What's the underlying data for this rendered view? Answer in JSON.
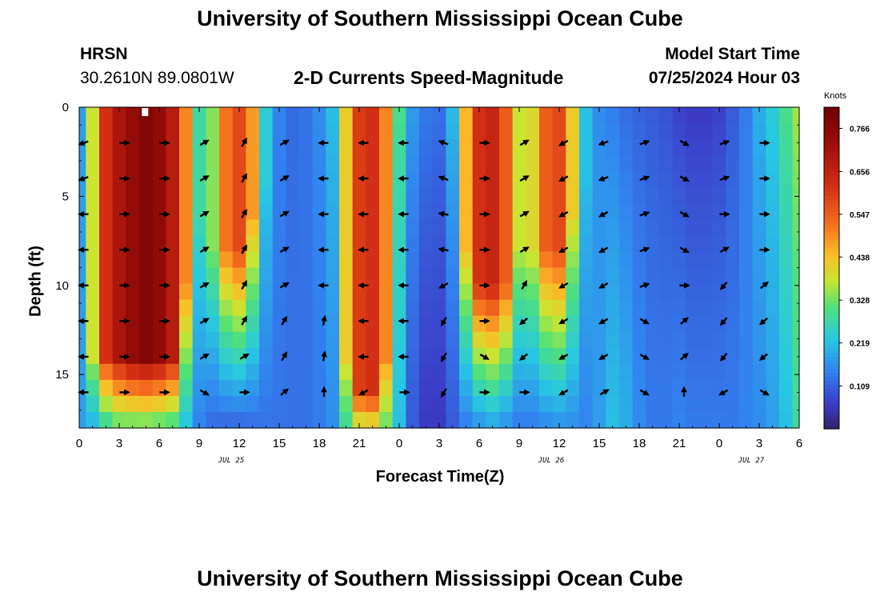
{
  "page": {
    "title_top": "University of Southern Mississippi Ocean Cube",
    "title_bottom": "University of Southern Mississippi Ocean Cube",
    "station": "HRSN",
    "coords": "30.2610N  89.0801W",
    "subtitle": "2-D Currents Speed-Magnitude",
    "model_start_label": "Model Start Time",
    "model_start_value": "07/25/2024 Hour 03"
  },
  "chart_data": {
    "type": "heatmap",
    "title": "2-D Currents Speed-Magnitude",
    "xlabel": "Forecast Time(Z)",
    "ylabel": "Depth (ft)",
    "x_range_hours": [
      0,
      54
    ],
    "y_range_ft": [
      0,
      18
    ],
    "x_ticks": [
      {
        "hour": 0,
        "label": "0"
      },
      {
        "hour": 3,
        "label": "3"
      },
      {
        "hour": 6,
        "label": "6"
      },
      {
        "hour": 9,
        "label": "9"
      },
      {
        "hour": 12,
        "label": "12"
      },
      {
        "hour": 15,
        "label": "15"
      },
      {
        "hour": 18,
        "label": "18"
      },
      {
        "hour": 21,
        "label": "21"
      },
      {
        "hour": 24,
        "label": "0"
      },
      {
        "hour": 27,
        "label": "3"
      },
      {
        "hour": 30,
        "label": "6"
      },
      {
        "hour": 33,
        "label": "9"
      },
      {
        "hour": 36,
        "label": "12"
      },
      {
        "hour": 39,
        "label": "15"
      },
      {
        "hour": 42,
        "label": "18"
      },
      {
        "hour": 45,
        "label": "21"
      },
      {
        "hour": 48,
        "label": "0"
      },
      {
        "hour": 51,
        "label": "3"
      },
      {
        "hour": 54,
        "label": "6"
      }
    ],
    "y_ticks": [
      {
        "depth": 0,
        "label": "0"
      },
      {
        "depth": 5,
        "label": "5"
      },
      {
        "depth": 10,
        "label": "10"
      },
      {
        "depth": 15,
        "label": "15"
      }
    ],
    "date_labels": [
      {
        "hour": 12,
        "label": "JUL 25"
      },
      {
        "hour": 36,
        "label": "JUL 26"
      },
      {
        "hour": 51,
        "label": "JUL 27"
      }
    ],
    "colorbar": {
      "unit": "Knots",
      "min": 0.0,
      "max": 0.82,
      "ticks": [
        0.109,
        0.219,
        0.328,
        0.438,
        0.547,
        0.656,
        0.766
      ],
      "tick_labels": [
        "0.109",
        "0.219",
        "0.328",
        "0.438",
        "0.547",
        "0.656",
        "0.766"
      ]
    },
    "speed_field": {
      "description": "estimated speed (knots) by forecast hour; surface and bottom values",
      "hours": [
        0,
        1,
        2,
        3,
        4,
        5,
        6,
        7,
        8,
        9,
        10,
        11,
        12,
        13,
        14,
        15,
        16,
        17,
        18,
        19,
        20,
        21,
        22,
        23,
        24,
        25,
        26,
        27,
        28,
        29,
        30,
        31,
        32,
        33,
        34,
        35,
        36,
        37,
        38,
        39,
        40,
        41,
        42,
        43,
        44,
        45,
        46,
        47,
        48,
        49,
        50,
        51,
        52,
        53,
        54
      ],
      "surface": [
        0.18,
        0.38,
        0.62,
        0.7,
        0.75,
        0.78,
        0.75,
        0.68,
        0.5,
        0.28,
        0.34,
        0.52,
        0.58,
        0.48,
        0.24,
        0.15,
        0.12,
        0.13,
        0.16,
        0.22,
        0.42,
        0.6,
        0.62,
        0.5,
        0.3,
        0.18,
        0.14,
        0.13,
        0.22,
        0.45,
        0.62,
        0.65,
        0.55,
        0.38,
        0.4,
        0.55,
        0.58,
        0.42,
        0.22,
        0.16,
        0.14,
        0.12,
        0.11,
        0.1,
        0.09,
        0.07,
        0.06,
        0.06,
        0.07,
        0.1,
        0.14,
        0.2,
        0.24,
        0.3,
        0.36
      ],
      "bottom": [
        0.18,
        0.2,
        0.26,
        0.3,
        0.3,
        0.3,
        0.29,
        0.28,
        0.22,
        0.15,
        0.12,
        0.11,
        0.11,
        0.12,
        0.13,
        0.13,
        0.13,
        0.13,
        0.14,
        0.16,
        0.28,
        0.36,
        0.38,
        0.32,
        0.22,
        0.1,
        0.06,
        0.06,
        0.1,
        0.14,
        0.16,
        0.18,
        0.16,
        0.14,
        0.14,
        0.15,
        0.16,
        0.16,
        0.15,
        0.18,
        0.22,
        0.2,
        0.16,
        0.14,
        0.14,
        0.15,
        0.14,
        0.14,
        0.14,
        0.14,
        0.15,
        0.16,
        0.18,
        0.22,
        0.28
      ],
      "core_depth_ft": [
        0,
        14,
        14,
        14,
        14,
        14,
        14,
        14,
        10,
        6,
        8,
        8,
        8,
        6,
        4,
        0,
        0,
        0,
        0,
        0,
        14,
        16,
        16,
        14,
        0,
        0,
        0,
        0,
        0,
        8,
        10,
        10,
        10,
        8,
        8,
        8,
        8,
        6,
        4,
        0,
        0,
        0,
        0,
        0,
        0,
        0,
        0,
        0,
        0,
        0,
        0,
        0,
        0,
        0,
        0
      ]
    },
    "vector_columns_hours": [
      0,
      3,
      6,
      9,
      12,
      15,
      18,
      21,
      24,
      27,
      30,
      33,
      36,
      39,
      42,
      45,
      48,
      51
    ],
    "vector_rows_depth_ft": [
      2,
      4,
      6,
      8,
      10,
      12,
      14,
      16
    ],
    "vector_directions_deg": [
      [
        200,
        0,
        0,
        30,
        60,
        30,
        180,
        180,
        180,
        160,
        0,
        30,
        210,
        200,
        20,
        330,
        20,
        0
      ],
      [
        200,
        0,
        0,
        30,
        60,
        30,
        180,
        180,
        180,
        160,
        0,
        30,
        210,
        200,
        20,
        330,
        20,
        0
      ],
      [
        180,
        0,
        0,
        30,
        60,
        30,
        180,
        180,
        180,
        170,
        0,
        30,
        210,
        210,
        20,
        330,
        0,
        0
      ],
      [
        180,
        0,
        0,
        30,
        60,
        30,
        180,
        180,
        180,
        170,
        0,
        30,
        210,
        210,
        20,
        330,
        30,
        0
      ],
      [
        180,
        0,
        0,
        30,
        60,
        30,
        180,
        180,
        180,
        210,
        0,
        60,
        210,
        210,
        20,
        0,
        230,
        40
      ],
      [
        180,
        0,
        0,
        30,
        60,
        60,
        80,
        180,
        180,
        240,
        0,
        220,
        210,
        210,
        330,
        40,
        230,
        220
      ],
      [
        180,
        0,
        0,
        30,
        30,
        60,
        80,
        180,
        180,
        240,
        330,
        220,
        210,
        210,
        330,
        40,
        230,
        220
      ],
      [
        180,
        0,
        0,
        330,
        0,
        40,
        90,
        210,
        0,
        240,
        0,
        0,
        210,
        30,
        330,
        90,
        210,
        330
      ]
    ]
  }
}
